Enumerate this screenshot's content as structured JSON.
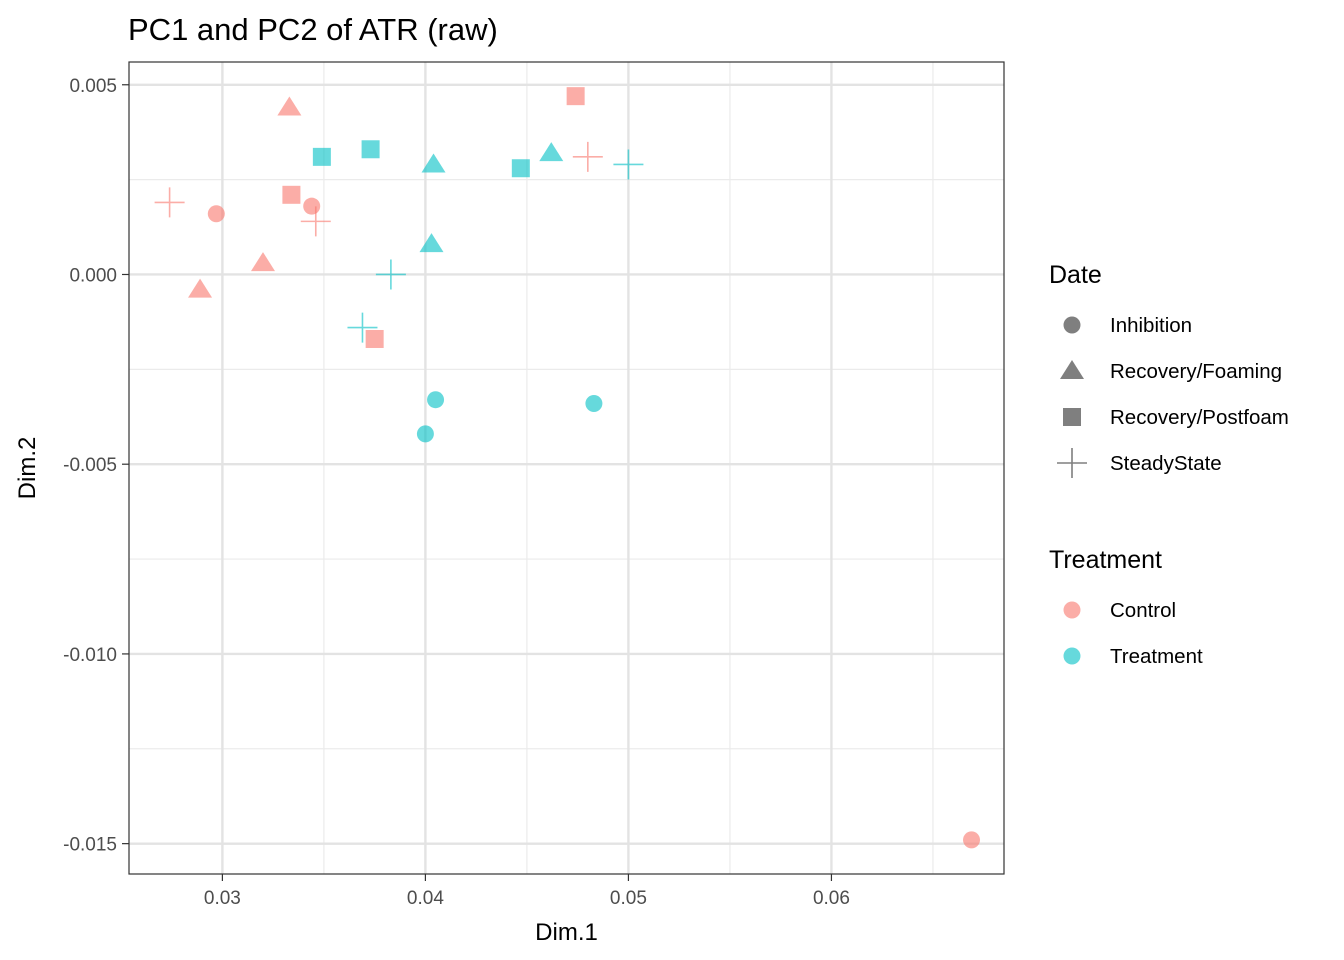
{
  "chart_data": {
    "type": "scatter",
    "title": "PC1 and PC2 of ATR (raw)",
    "xlabel": "Dim.1",
    "ylabel": "Dim.2",
    "xlim": [
      0.0254,
      0.0685
    ],
    "ylim": [
      -0.0158,
      0.0056
    ],
    "x_ticks": [
      {
        "value": 0.03,
        "label": "0.03"
      },
      {
        "value": 0.04,
        "label": "0.04"
      },
      {
        "value": 0.05,
        "label": "0.05"
      },
      {
        "value": 0.06,
        "label": "0.06"
      }
    ],
    "y_ticks": [
      {
        "value": 0.005,
        "label": "0.005"
      },
      {
        "value": 0.0,
        "label": "0.000"
      },
      {
        "value": -0.005,
        "label": "-0.005"
      },
      {
        "value": -0.01,
        "label": "-0.010"
      },
      {
        "value": -0.015,
        "label": "-0.015"
      }
    ],
    "grid": true,
    "legend_placement": "right",
    "shape_legend": {
      "title": "Date",
      "items": [
        {
          "label": "Inhibition",
          "shape": "circle"
        },
        {
          "label": "Recovery/Foaming",
          "shape": "triangle"
        },
        {
          "label": "Recovery/Postfoam",
          "shape": "square"
        },
        {
          "label": "SteadyState",
          "shape": "plus"
        }
      ]
    },
    "color_legend": {
      "title": "Treatment",
      "items": [
        {
          "label": "Control",
          "color": "#F8766D"
        },
        {
          "label": "Treatment",
          "color": "#00BFC4"
        }
      ]
    },
    "points": [
      {
        "x": 0.0297,
        "y": 0.0016,
        "date": "Inhibition",
        "treatment": "Control"
      },
      {
        "x": 0.0344,
        "y": 0.0018,
        "date": "Inhibition",
        "treatment": "Control"
      },
      {
        "x": 0.0669,
        "y": -0.0149,
        "date": "Inhibition",
        "treatment": "Control"
      },
      {
        "x": 0.0405,
        "y": -0.0033,
        "date": "Inhibition",
        "treatment": "Treatment"
      },
      {
        "x": 0.04,
        "y": -0.0042,
        "date": "Inhibition",
        "treatment": "Treatment"
      },
      {
        "x": 0.0483,
        "y": -0.0034,
        "date": "Inhibition",
        "treatment": "Treatment"
      },
      {
        "x": 0.0333,
        "y": 0.0044,
        "date": "Recovery/Foaming",
        "treatment": "Control"
      },
      {
        "x": 0.0289,
        "y": -0.0004,
        "date": "Recovery/Foaming",
        "treatment": "Control"
      },
      {
        "x": 0.032,
        "y": 0.0003,
        "date": "Recovery/Foaming",
        "treatment": "Control"
      },
      {
        "x": 0.0404,
        "y": 0.0029,
        "date": "Recovery/Foaming",
        "treatment": "Treatment"
      },
      {
        "x": 0.0403,
        "y": 0.0008,
        "date": "Recovery/Foaming",
        "treatment": "Treatment"
      },
      {
        "x": 0.0462,
        "y": 0.0032,
        "date": "Recovery/Foaming",
        "treatment": "Treatment"
      },
      {
        "x": 0.0474,
        "y": 0.0047,
        "date": "Recovery/Postfoam",
        "treatment": "Control"
      },
      {
        "x": 0.0334,
        "y": 0.0021,
        "date": "Recovery/Postfoam",
        "treatment": "Control"
      },
      {
        "x": 0.0375,
        "y": -0.0017,
        "date": "Recovery/Postfoam",
        "treatment": "Control"
      },
      {
        "x": 0.0349,
        "y": 0.0031,
        "date": "Recovery/Postfoam",
        "treatment": "Treatment"
      },
      {
        "x": 0.0373,
        "y": 0.0033,
        "date": "Recovery/Postfoam",
        "treatment": "Treatment"
      },
      {
        "x": 0.0447,
        "y": 0.0028,
        "date": "Recovery/Postfoam",
        "treatment": "Treatment"
      },
      {
        "x": 0.0274,
        "y": 0.0019,
        "date": "SteadyState",
        "treatment": "Control"
      },
      {
        "x": 0.0346,
        "y": 0.0014,
        "date": "SteadyState",
        "treatment": "Control"
      },
      {
        "x": 0.048,
        "y": 0.0031,
        "date": "SteadyState",
        "treatment": "Control"
      },
      {
        "x": 0.0383,
        "y": 0.0,
        "date": "SteadyState",
        "treatment": "Treatment"
      },
      {
        "x": 0.0369,
        "y": -0.0014,
        "date": "SteadyState",
        "treatment": "Treatment"
      },
      {
        "x": 0.05,
        "y": 0.0029,
        "date": "SteadyState",
        "treatment": "Treatment"
      }
    ]
  }
}
